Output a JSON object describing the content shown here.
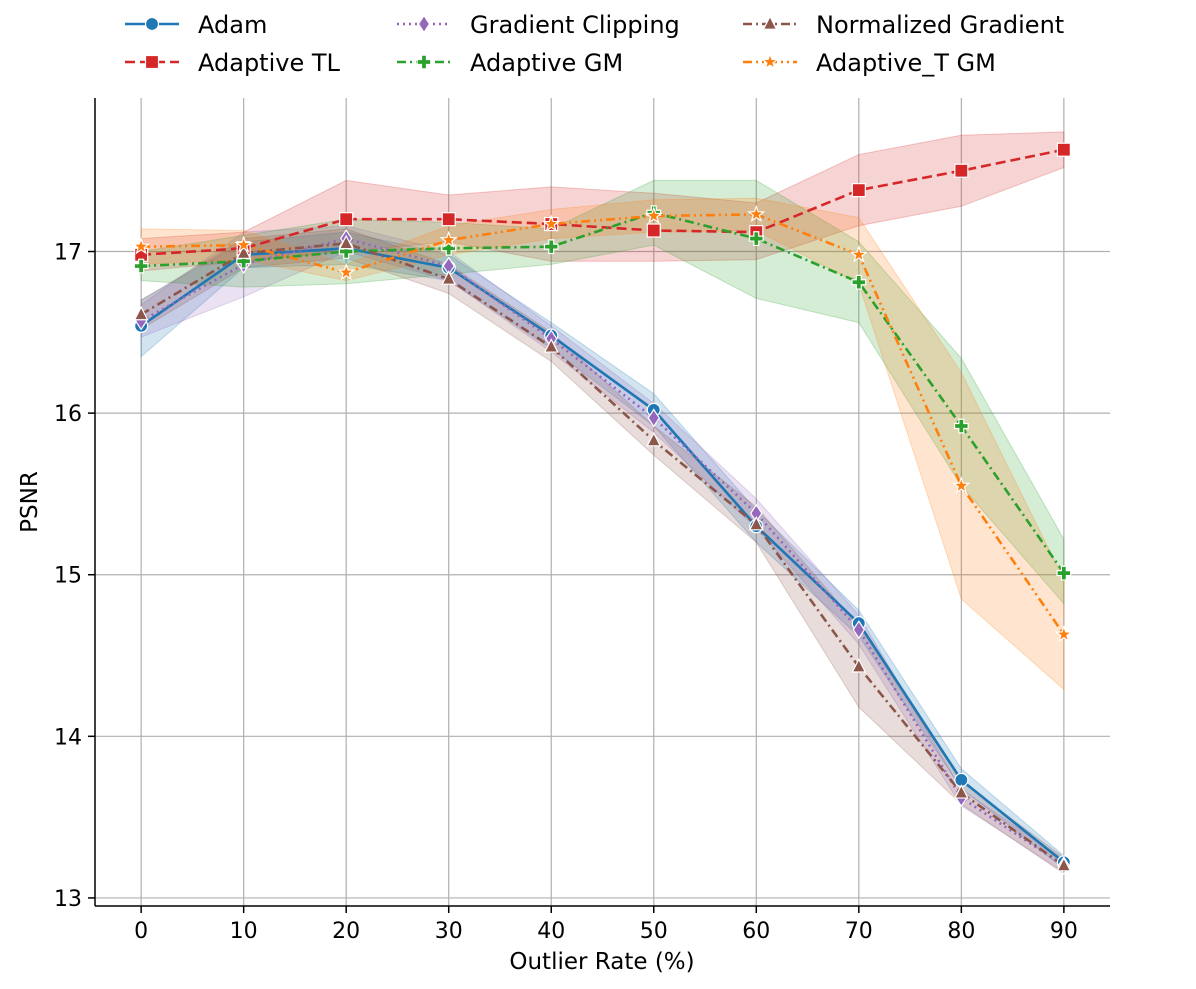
{
  "chart_data": {
    "type": "line",
    "title": "",
    "xlabel": "Outlier Rate (%)",
    "ylabel": "PSNR",
    "x": [
      0,
      10,
      20,
      30,
      40,
      50,
      60,
      70,
      80,
      90
    ],
    "xlim": [
      -4.5,
      94.5
    ],
    "ylim": [
      12.95,
      17.95
    ],
    "xticks": [
      0,
      10,
      20,
      30,
      40,
      50,
      60,
      70,
      80,
      90
    ],
    "yticks": [
      13,
      14,
      15,
      16,
      17
    ],
    "grid": true,
    "legend_position": "top",
    "series": [
      {
        "name": "Adam",
        "color": "#1f77b4",
        "linestyle": "solid",
        "marker": "circle",
        "values": [
          16.54,
          16.98,
          17.02,
          16.9,
          16.48,
          16.02,
          15.3,
          14.7,
          13.73,
          13.22
        ],
        "lower": [
          16.35,
          16.9,
          16.92,
          16.82,
          16.4,
          15.92,
          15.2,
          14.62,
          13.68,
          13.18
        ],
        "upper": [
          16.7,
          17.06,
          17.12,
          16.98,
          16.56,
          16.12,
          15.4,
          14.78,
          13.8,
          13.26
        ]
      },
      {
        "name": "Adaptive TL",
        "color": "#d62728",
        "linestyle": "dashed",
        "marker": "square",
        "values": [
          16.98,
          17.02,
          17.2,
          17.2,
          17.17,
          17.13,
          17.12,
          17.38,
          17.5,
          17.63
        ],
        "lower": [
          16.88,
          16.94,
          17.0,
          17.06,
          16.94,
          16.94,
          16.95,
          17.16,
          17.28,
          17.52
        ],
        "upper": [
          17.08,
          17.12,
          17.44,
          17.35,
          17.4,
          17.36,
          17.3,
          17.6,
          17.72,
          17.74
        ]
      },
      {
        "name": "Gradient Clipping",
        "color": "#9467bd",
        "linestyle": "dotted",
        "marker": "diamond",
        "values": [
          16.57,
          16.92,
          17.08,
          16.91,
          16.46,
          15.97,
          15.38,
          14.66,
          13.62,
          13.2
        ],
        "lower": [
          16.47,
          16.72,
          17.0,
          16.82,
          16.38,
          15.88,
          15.29,
          14.57,
          13.57,
          13.16
        ],
        "upper": [
          16.67,
          17.12,
          17.16,
          17.0,
          16.54,
          16.06,
          15.47,
          14.75,
          13.67,
          13.24
        ]
      },
      {
        "name": "Adaptive GM",
        "color": "#2ca02c",
        "linestyle": "dashdot",
        "marker": "plus",
        "values": [
          16.91,
          16.94,
          17.0,
          17.02,
          17.03,
          17.24,
          17.08,
          16.81,
          15.92,
          15.01
        ],
        "lower": [
          16.82,
          16.78,
          16.8,
          16.86,
          16.92,
          17.04,
          16.71,
          16.56,
          15.55,
          14.82
        ],
        "upper": [
          17.0,
          17.1,
          17.2,
          17.18,
          17.14,
          17.44,
          17.44,
          17.06,
          16.34,
          15.22
        ]
      },
      {
        "name": "Normalized Gradient",
        "color": "#8c564b",
        "linestyle": "dashdot",
        "marker": "triangle",
        "values": [
          16.61,
          16.99,
          17.05,
          16.83,
          16.41,
          15.83,
          15.31,
          14.43,
          13.65,
          13.2
        ],
        "lower": [
          16.52,
          16.9,
          16.96,
          16.74,
          16.32,
          15.74,
          15.2,
          14.18,
          13.58,
          13.15
        ],
        "upper": [
          16.7,
          17.08,
          17.14,
          16.92,
          16.5,
          15.92,
          15.42,
          14.68,
          13.72,
          13.25
        ]
      },
      {
        "name": "Adaptive_T GM",
        "color": "#ff7f0e",
        "linestyle": "dashdotdot",
        "marker": "star",
        "values": [
          17.03,
          17.04,
          16.87,
          17.07,
          17.17,
          17.22,
          17.23,
          16.98,
          15.55,
          14.63
        ],
        "lower": [
          16.92,
          16.95,
          16.82,
          16.98,
          17.08,
          17.12,
          17.13,
          16.8,
          14.85,
          14.29
        ],
        "upper": [
          17.14,
          17.13,
          16.92,
          17.16,
          17.26,
          17.32,
          17.33,
          17.21,
          16.25,
          14.97
        ]
      }
    ]
  }
}
